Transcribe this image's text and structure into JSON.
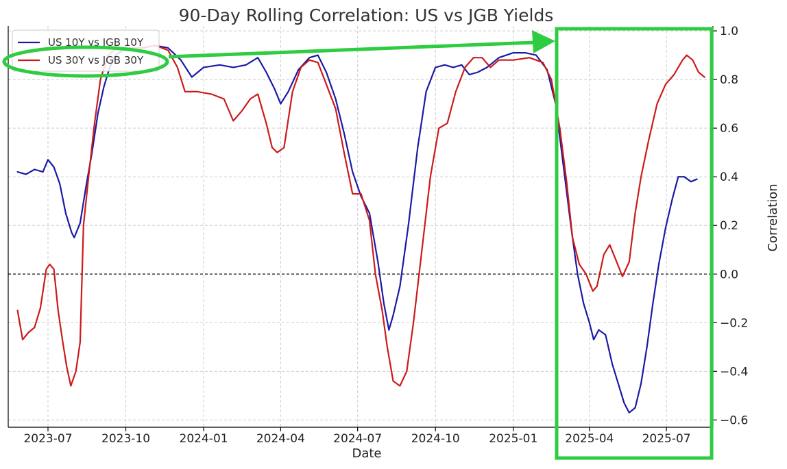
{
  "chart_data": {
    "type": "line",
    "title": "90-Day Rolling Correlation: US vs JGB Yields",
    "xlabel": "Date",
    "ylabel": "Correlation",
    "x_range": [
      "2023-05-15",
      "2025-08-25"
    ],
    "ylim": [
      -0.63,
      1.02
    ],
    "x_ticks": [
      "2023-07",
      "2023-10",
      "2024-01",
      "2024-04",
      "2024-07",
      "2024-10",
      "2025-01",
      "2025-04",
      "2025-07"
    ],
    "y_ticks": [
      "1.0",
      "0.8",
      "0.6",
      "0.4",
      "0.2",
      "0.0",
      "−0.2",
      "−0.4",
      "−0.6"
    ],
    "y_tick_values": [
      1.0,
      0.8,
      0.6,
      0.4,
      0.2,
      0.0,
      -0.2,
      -0.4,
      -0.6
    ],
    "reference_line": 0.0,
    "grid": true,
    "legend_position": "top-left",
    "series": [
      {
        "name": "US 10Y vs JGB 10Y",
        "color": "#1a1aa6",
        "points": [
          [
            "2023-05-26",
            0.42
          ],
          [
            "2023-06-05",
            0.41
          ],
          [
            "2023-06-15",
            0.43
          ],
          [
            "2023-06-25",
            0.42
          ],
          [
            "2023-07-01",
            0.47
          ],
          [
            "2023-07-08",
            0.44
          ],
          [
            "2023-07-15",
            0.37
          ],
          [
            "2023-07-22",
            0.25
          ],
          [
            "2023-07-29",
            0.17
          ],
          [
            "2023-08-01",
            0.15
          ],
          [
            "2023-08-08",
            0.21
          ],
          [
            "2023-08-15",
            0.36
          ],
          [
            "2023-08-22",
            0.5
          ],
          [
            "2023-08-29",
            0.66
          ],
          [
            "2023-09-05",
            0.77
          ],
          [
            "2023-09-12",
            0.85
          ],
          [
            "2023-09-19",
            0.9
          ],
          [
            "2023-10-01",
            0.93
          ],
          [
            "2023-10-20",
            0.93
          ],
          [
            "2023-11-05",
            0.94
          ],
          [
            "2023-11-20",
            0.93
          ],
          [
            "2023-12-05",
            0.88
          ],
          [
            "2023-12-18",
            0.81
          ],
          [
            "2024-01-01",
            0.85
          ],
          [
            "2024-01-20",
            0.86
          ],
          [
            "2024-02-05",
            0.85
          ],
          [
            "2024-02-20",
            0.86
          ],
          [
            "2024-03-05",
            0.89
          ],
          [
            "2024-03-15",
            0.83
          ],
          [
            "2024-03-25",
            0.76
          ],
          [
            "2024-04-01",
            0.7
          ],
          [
            "2024-04-10",
            0.75
          ],
          [
            "2024-04-22",
            0.84
          ],
          [
            "2024-05-05",
            0.89
          ],
          [
            "2024-05-15",
            0.9
          ],
          [
            "2024-05-25",
            0.83
          ],
          [
            "2024-06-05",
            0.72
          ],
          [
            "2024-06-15",
            0.58
          ],
          [
            "2024-06-25",
            0.42
          ],
          [
            "2024-07-05",
            0.32
          ],
          [
            "2024-07-15",
            0.25
          ],
          [
            "2024-07-25",
            0.05
          ],
          [
            "2024-08-01",
            -0.12
          ],
          [
            "2024-08-07",
            -0.23
          ],
          [
            "2024-08-12",
            -0.17
          ],
          [
            "2024-08-20",
            -0.05
          ],
          [
            "2024-08-30",
            0.2
          ],
          [
            "2024-09-10",
            0.52
          ],
          [
            "2024-09-20",
            0.75
          ],
          [
            "2024-10-01",
            0.85
          ],
          [
            "2024-10-12",
            0.86
          ],
          [
            "2024-10-22",
            0.85
          ],
          [
            "2024-11-01",
            0.86
          ],
          [
            "2024-11-10",
            0.82
          ],
          [
            "2024-11-20",
            0.83
          ],
          [
            "2024-12-01",
            0.85
          ],
          [
            "2024-12-15",
            0.89
          ],
          [
            "2025-01-01",
            0.91
          ],
          [
            "2025-01-15",
            0.91
          ],
          [
            "2025-01-28",
            0.9
          ],
          [
            "2025-02-10",
            0.84
          ],
          [
            "2025-02-20",
            0.7
          ],
          [
            "2025-03-01",
            0.45
          ],
          [
            "2025-03-10",
            0.2
          ],
          [
            "2025-03-18",
            0.0
          ],
          [
            "2025-03-25",
            -0.12
          ],
          [
            "2025-04-01",
            -0.2
          ],
          [
            "2025-04-06",
            -0.27
          ],
          [
            "2025-04-12",
            -0.23
          ],
          [
            "2025-04-20",
            -0.25
          ],
          [
            "2025-04-28",
            -0.37
          ],
          [
            "2025-05-05",
            -0.45
          ],
          [
            "2025-05-12",
            -0.53
          ],
          [
            "2025-05-18",
            -0.57
          ],
          [
            "2025-05-25",
            -0.55
          ],
          [
            "2025-06-01",
            -0.45
          ],
          [
            "2025-06-08",
            -0.3
          ],
          [
            "2025-06-15",
            -0.12
          ],
          [
            "2025-06-22",
            0.04
          ],
          [
            "2025-06-30",
            0.19
          ],
          [
            "2025-07-08",
            0.31
          ],
          [
            "2025-07-15",
            0.4
          ],
          [
            "2025-07-22",
            0.4
          ],
          [
            "2025-07-30",
            0.38
          ],
          [
            "2025-08-06",
            0.39
          ]
        ]
      },
      {
        "name": "US 30Y vs JGB 30Y",
        "color": "#cc1a1a",
        "points": [
          [
            "2023-05-26",
            -0.15
          ],
          [
            "2023-06-01",
            -0.27
          ],
          [
            "2023-06-08",
            -0.24
          ],
          [
            "2023-06-15",
            -0.22
          ],
          [
            "2023-06-22",
            -0.14
          ],
          [
            "2023-06-29",
            0.02
          ],
          [
            "2023-07-03",
            0.04
          ],
          [
            "2023-07-08",
            0.02
          ],
          [
            "2023-07-13",
            -0.15
          ],
          [
            "2023-07-18",
            -0.27
          ],
          [
            "2023-07-23",
            -0.38
          ],
          [
            "2023-07-28",
            -0.46
          ],
          [
            "2023-08-03",
            -0.4
          ],
          [
            "2023-08-08",
            -0.28
          ],
          [
            "2023-08-12",
            0.2
          ],
          [
            "2023-08-18",
            0.4
          ],
          [
            "2023-08-25",
            0.62
          ],
          [
            "2023-09-01",
            0.8
          ],
          [
            "2023-09-10",
            0.9
          ],
          [
            "2023-09-20",
            0.93
          ],
          [
            "2023-10-05",
            0.93
          ],
          [
            "2023-10-20",
            0.93
          ],
          [
            "2023-11-05",
            0.94
          ],
          [
            "2023-11-20",
            0.92
          ],
          [
            "2023-12-01",
            0.85
          ],
          [
            "2023-12-10",
            0.75
          ],
          [
            "2023-12-25",
            0.75
          ],
          [
            "2024-01-10",
            0.74
          ],
          [
            "2024-01-25",
            0.72
          ],
          [
            "2024-02-05",
            0.63
          ],
          [
            "2024-02-15",
            0.67
          ],
          [
            "2024-02-25",
            0.72
          ],
          [
            "2024-03-05",
            0.74
          ],
          [
            "2024-03-15",
            0.62
          ],
          [
            "2024-03-22",
            0.52
          ],
          [
            "2024-03-28",
            0.5
          ],
          [
            "2024-04-05",
            0.52
          ],
          [
            "2024-04-15",
            0.75
          ],
          [
            "2024-04-25",
            0.85
          ],
          [
            "2024-05-05",
            0.88
          ],
          [
            "2024-05-15",
            0.87
          ],
          [
            "2024-05-25",
            0.78
          ],
          [
            "2024-06-05",
            0.68
          ],
          [
            "2024-06-15",
            0.5
          ],
          [
            "2024-06-25",
            0.33
          ],
          [
            "2024-07-05",
            0.33
          ],
          [
            "2024-07-15",
            0.22
          ],
          [
            "2024-07-22",
            0.0
          ],
          [
            "2024-07-30",
            -0.15
          ],
          [
            "2024-08-05",
            -0.3
          ],
          [
            "2024-08-12",
            -0.44
          ],
          [
            "2024-08-20",
            -0.46
          ],
          [
            "2024-08-28",
            -0.4
          ],
          [
            "2024-09-05",
            -0.2
          ],
          [
            "2024-09-15",
            0.1
          ],
          [
            "2024-09-25",
            0.4
          ],
          [
            "2024-10-05",
            0.6
          ],
          [
            "2024-10-15",
            0.62
          ],
          [
            "2024-10-25",
            0.75
          ],
          [
            "2024-11-05",
            0.85
          ],
          [
            "2024-11-15",
            0.89
          ],
          [
            "2024-11-25",
            0.89
          ],
          [
            "2024-12-05",
            0.85
          ],
          [
            "2024-12-15",
            0.88
          ],
          [
            "2025-01-01",
            0.88
          ],
          [
            "2025-01-20",
            0.89
          ],
          [
            "2025-02-05",
            0.87
          ],
          [
            "2025-02-15",
            0.8
          ],
          [
            "2025-02-25",
            0.6
          ],
          [
            "2025-03-05",
            0.38
          ],
          [
            "2025-03-12",
            0.15
          ],
          [
            "2025-03-20",
            0.04
          ],
          [
            "2025-03-28",
            0.0
          ],
          [
            "2025-04-05",
            -0.07
          ],
          [
            "2025-04-10",
            -0.05
          ],
          [
            "2025-04-18",
            0.08
          ],
          [
            "2025-04-25",
            0.12
          ],
          [
            "2025-05-02",
            0.06
          ],
          [
            "2025-05-10",
            -0.01
          ],
          [
            "2025-05-18",
            0.05
          ],
          [
            "2025-05-25",
            0.25
          ],
          [
            "2025-06-01",
            0.4
          ],
          [
            "2025-06-10",
            0.55
          ],
          [
            "2025-06-20",
            0.7
          ],
          [
            "2025-06-30",
            0.78
          ],
          [
            "2025-07-10",
            0.82
          ],
          [
            "2025-07-20",
            0.88
          ],
          [
            "2025-07-25",
            0.9
          ],
          [
            "2025-08-01",
            0.88
          ],
          [
            "2025-08-08",
            0.83
          ],
          [
            "2025-08-15",
            0.81
          ]
        ]
      }
    ],
    "annotations": [
      {
        "type": "ellipse",
        "target": "legend-entry-2",
        "color": "#2ecc40"
      },
      {
        "type": "arrow",
        "from": "legend-entry-2",
        "to": "highlight-box",
        "color": "#2ecc40"
      },
      {
        "type": "rect",
        "region": [
          "2025-02-20",
          "2025-08-25"
        ],
        "color": "#2ecc40"
      }
    ]
  }
}
